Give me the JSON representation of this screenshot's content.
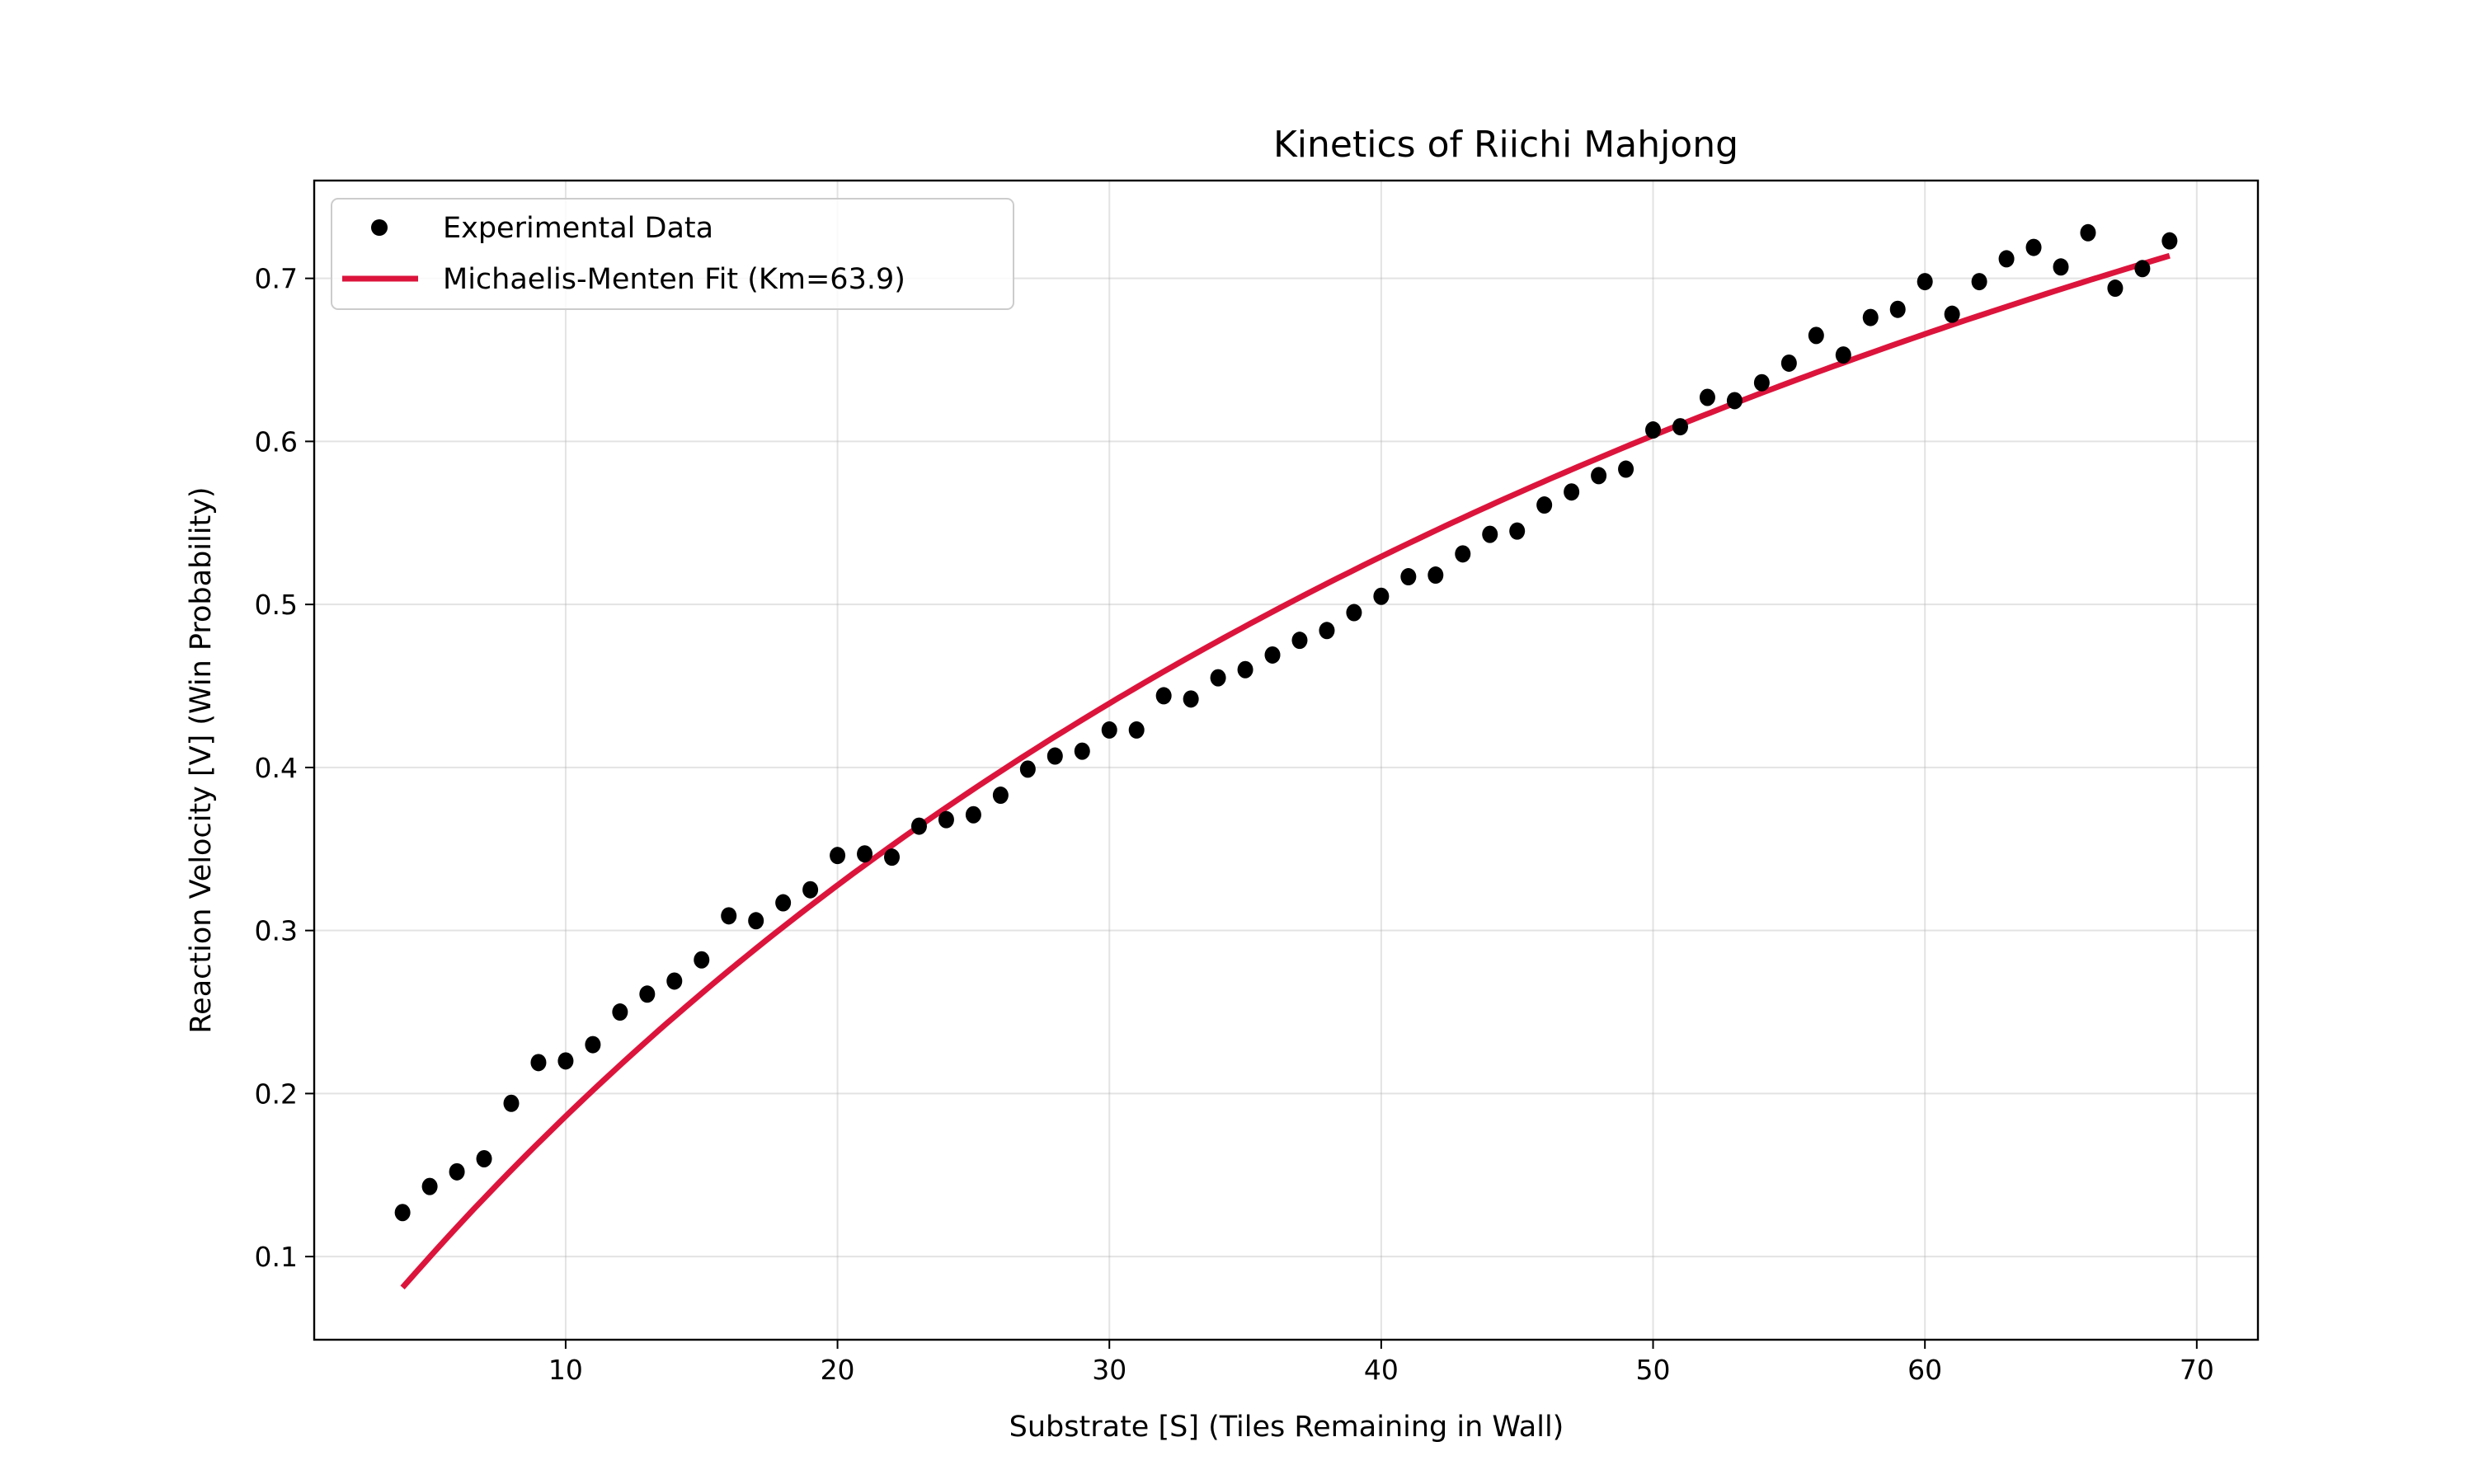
{
  "chart_data": {
    "type": "scatter",
    "title": "Kinetics of Riichi Mahjong",
    "xlabel": "Substrate [S] (Tiles Remaining in Wall)",
    "ylabel": "Reaction Velocity [V] (Win Probability)",
    "xlim": [
      0.75,
      72.25
    ],
    "ylim": [
      0.049,
      0.76
    ],
    "xticks": [
      10,
      20,
      30,
      40,
      50,
      60,
      70
    ],
    "yticks": [
      0.1,
      0.2,
      0.3,
      0.4,
      0.5,
      0.6,
      0.7
    ],
    "grid": true,
    "legend_position": "top-left",
    "series": [
      {
        "name": "Experimental Data",
        "kind": "scatter",
        "color": "#000000",
        "x": [
          4,
          5,
          6,
          7,
          8,
          9,
          10,
          11,
          12,
          13,
          14,
          15,
          16,
          17,
          18,
          19,
          20,
          21,
          22,
          23,
          24,
          25,
          26,
          27,
          28,
          29,
          30,
          31,
          32,
          33,
          34,
          35,
          36,
          37,
          38,
          39,
          40,
          41,
          42,
          43,
          44,
          45,
          46,
          47,
          48,
          49,
          50,
          51,
          52,
          53,
          54,
          55,
          56,
          57,
          58,
          59,
          60,
          61,
          62,
          63,
          64,
          65,
          66,
          67,
          68,
          69
        ],
        "y": [
          0.127,
          0.143,
          0.152,
          0.16,
          0.194,
          0.219,
          0.22,
          0.23,
          0.25,
          0.261,
          0.269,
          0.282,
          0.309,
          0.306,
          0.317,
          0.325,
          0.346,
          0.347,
          0.345,
          0.364,
          0.368,
          0.371,
          0.383,
          0.399,
          0.407,
          0.41,
          0.423,
          0.423,
          0.444,
          0.442,
          0.455,
          0.46,
          0.469,
          0.478,
          0.484,
          0.495,
          0.505,
          0.517,
          0.518,
          0.531,
          0.543,
          0.545,
          0.561,
          0.569,
          0.579,
          0.583,
          0.607,
          0.609,
          0.627,
          0.625,
          0.636,
          0.648,
          0.665,
          0.653,
          0.676,
          0.681,
          0.698,
          0.678,
          0.698,
          0.712,
          0.719,
          0.707,
          0.728,
          0.694,
          0.706,
          0.723
        ]
      },
      {
        "name": "Michaelis-Menten Fit (Km=63.9)",
        "kind": "line",
        "color": "#DC143C",
        "model": "V = Vmax*S/(Km+S)",
        "Vmax": 1.375,
        "Km": 63.9,
        "x_range": [
          4,
          69
        ]
      }
    ]
  }
}
